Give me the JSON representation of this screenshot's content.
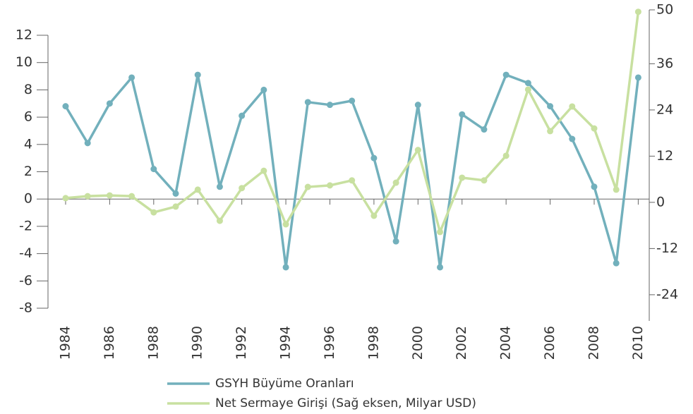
{
  "chart_data": {
    "type": "line",
    "x": [
      1984,
      1985,
      1986,
      1987,
      1988,
      1989,
      1990,
      1991,
      1992,
      1993,
      1994,
      1995,
      1996,
      1997,
      1998,
      1999,
      2000,
      2001,
      2002,
      2003,
      2004,
      2005,
      2006,
      2007,
      2008,
      2009,
      2010
    ],
    "series": [
      {
        "name": "GSYH Büyüme Oranları",
        "color": "#72b0bc",
        "axis": "y",
        "values": [
          6.8,
          4.1,
          7.0,
          8.9,
          2.2,
          0.4,
          9.1,
          0.9,
          6.1,
          8.0,
          -5.0,
          7.1,
          6.9,
          7.2,
          3.0,
          -3.1,
          6.9,
          -5.0,
          6.2,
          5.1,
          9.1,
          8.5,
          6.8,
          4.4,
          0.9,
          -4.7,
          8.9
        ]
      },
      {
        "name": "Net Sermaye Girişi (Sağ eksen, Milyar USD)",
        "color": "#c8e0a0",
        "axis": "y2",
        "values": [
          1.1,
          1.6,
          1.8,
          1.6,
          -2.6,
          -1.1,
          3.3,
          -4.8,
          3.7,
          8.2,
          -5.7,
          4.0,
          4.4,
          5.7,
          -3.5,
          5.1,
          13.6,
          -7.7,
          6.4,
          5.7,
          12.1,
          29.3,
          18.5,
          24.9,
          19.2,
          3.3,
          49.5
        ]
      }
    ],
    "xlim": [
      1983.2,
      2010.5
    ],
    "xticks": [
      1984,
      1986,
      1988,
      1990,
      1992,
      1994,
      1996,
      1998,
      2000,
      2002,
      2004,
      2006,
      2008,
      2010
    ],
    "ylim": [
      -8,
      12
    ],
    "yticks": [
      -8,
      -6,
      -4,
      -2,
      0,
      2,
      4,
      6,
      8,
      10,
      12
    ],
    "y2lim": [
      -27.5,
      43.4
    ],
    "y2ticks": [
      -24,
      -12,
      0,
      12,
      24,
      36,
      50
    ],
    "legend": "bottom"
  }
}
